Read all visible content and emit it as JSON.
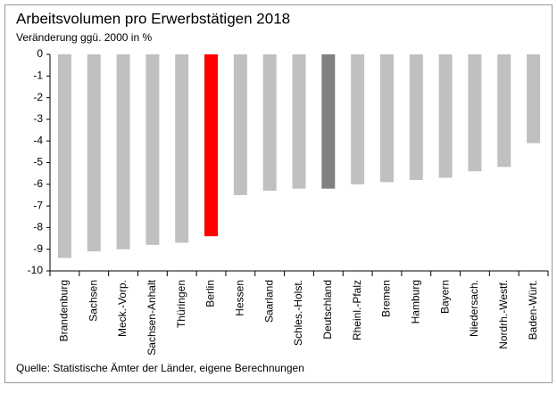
{
  "chart_data": {
    "type": "bar",
    "title": "Arbeitsvolumen  pro Erwerbstätigen 2018",
    "subtitle": "Veränderung ggü. 2000 in %",
    "source": "Quelle: Statistische Ämter der Länder,  eigene Berechnungen",
    "categories": [
      "Brandenburg",
      "Sachsen",
      "Meck.-Vorp.",
      "Sachsen-Anhalt",
      "Thüringen",
      "Berlin",
      "Hessen",
      "Saarland",
      "Schles.-Holst.",
      "Deutschland",
      "Rheinl.-Pfalz",
      "Bremen",
      "Hamburg",
      "Bayern",
      "Niedersach.",
      "Nordrh.-Westf.",
      "Baden-Würt."
    ],
    "values": [
      -9.4,
      -9.1,
      -9.0,
      -8.8,
      -8.7,
      -8.4,
      -6.5,
      -6.3,
      -6.2,
      -6.2,
      -6.0,
      -5.9,
      -5.8,
      -5.7,
      -5.4,
      -5.2,
      -4.1
    ],
    "colors": [
      "#c0c0c0",
      "#c0c0c0",
      "#c0c0c0",
      "#c0c0c0",
      "#c0c0c0",
      "#ff0000",
      "#c0c0c0",
      "#c0c0c0",
      "#c0c0c0",
      "#808080",
      "#c0c0c0",
      "#c0c0c0",
      "#c0c0c0",
      "#c0c0c0",
      "#c0c0c0",
      "#c0c0c0",
      "#c0c0c0"
    ],
    "ylim": [
      -10,
      0
    ],
    "yticks": [
      0,
      -1,
      -2,
      -3,
      -4,
      -5,
      -6,
      -7,
      -8,
      -9,
      -10
    ],
    "grid": false
  }
}
